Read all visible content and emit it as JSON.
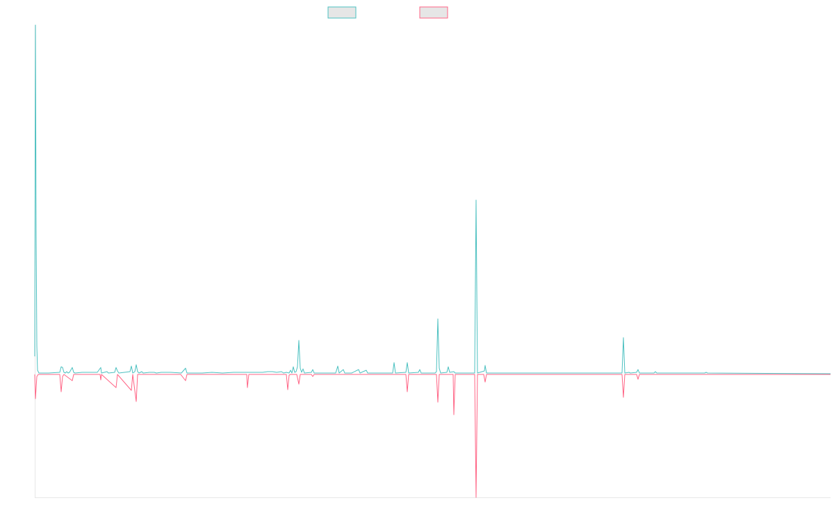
{
  "chart_data": {
    "type": "line",
    "title": "",
    "xlabel": "",
    "ylabel": "",
    "grid": false,
    "legend_position": "top-center",
    "xlim": [
      0,
      1145
    ],
    "ylim": [
      -178,
      502
    ],
    "baseline": 0,
    "series": [
      {
        "legend_label": "",
        "color": "#4bc0c0",
        "legend_fill": "#e6e6e6",
        "points": [
          [
            0,
            25
          ],
          [
            1,
            502
          ],
          [
            2,
            200
          ],
          [
            3,
            40
          ],
          [
            4,
            5
          ],
          [
            6,
            1
          ],
          [
            20,
            1
          ],
          [
            36,
            2
          ],
          [
            38,
            10
          ],
          [
            40,
            9
          ],
          [
            42,
            2
          ],
          [
            44,
            1
          ],
          [
            46,
            3
          ],
          [
            48,
            1
          ],
          [
            50,
            2
          ],
          [
            54,
            9
          ],
          [
            56,
            2
          ],
          [
            58,
            1
          ],
          [
            68,
            2
          ],
          [
            90,
            2
          ],
          [
            95,
            9
          ],
          [
            96,
            1
          ],
          [
            104,
            3
          ],
          [
            106,
            1
          ],
          [
            115,
            2
          ],
          [
            117,
            9
          ],
          [
            119,
            4
          ],
          [
            121,
            1
          ],
          [
            137,
            3
          ],
          [
            139,
            11
          ],
          [
            141,
            1
          ],
          [
            144,
            3
          ],
          [
            146,
            13
          ],
          [
            148,
            3
          ],
          [
            150,
            1
          ],
          [
            154,
            3
          ],
          [
            156,
            1
          ],
          [
            165,
            2
          ],
          [
            172,
            2
          ],
          [
            175,
            1
          ],
          [
            182,
            2
          ],
          [
            189,
            2
          ],
          [
            196,
            2
          ],
          [
            211,
            1
          ],
          [
            217,
            8
          ],
          [
            219,
            1
          ],
          [
            231,
            1
          ],
          [
            241,
            1
          ],
          [
            255,
            2
          ],
          [
            270,
            1
          ],
          [
            286,
            2
          ],
          [
            302,
            2
          ],
          [
            318,
            2
          ],
          [
            328,
            2
          ],
          [
            335,
            3
          ],
          [
            342,
            3
          ],
          [
            348,
            2
          ],
          [
            355,
            3
          ],
          [
            358,
            1
          ],
          [
            362,
            2
          ],
          [
            366,
            1
          ],
          [
            368,
            5
          ],
          [
            370,
            1
          ],
          [
            372,
            10
          ],
          [
            374,
            2
          ],
          [
            376,
            3
          ],
          [
            378,
            10
          ],
          [
            380,
            48
          ],
          [
            382,
            8
          ],
          [
            384,
            2
          ],
          [
            386,
            7
          ],
          [
            388,
            1
          ],
          [
            398,
            2
          ],
          [
            400,
            6
          ],
          [
            402,
            1
          ],
          [
            420,
            1
          ],
          [
            433,
            1
          ],
          [
            436,
            11
          ],
          [
            438,
            1
          ],
          [
            444,
            6
          ],
          [
            446,
            1
          ],
          [
            456,
            1
          ],
          [
            466,
            6
          ],
          [
            468,
            1
          ],
          [
            477,
            5
          ],
          [
            479,
            1
          ],
          [
            500,
            1
          ],
          [
            515,
            1
          ],
          [
            517,
            16
          ],
          [
            519,
            1
          ],
          [
            534,
            2
          ],
          [
            536,
            16
          ],
          [
            538,
            1
          ],
          [
            552,
            2
          ],
          [
            554,
            6
          ],
          [
            556,
            1
          ],
          [
            576,
            1
          ],
          [
            578,
            3
          ],
          [
            580,
            79
          ],
          [
            582,
            8
          ],
          [
            584,
            1
          ],
          [
            593,
            2
          ],
          [
            595,
            10
          ],
          [
            597,
            2
          ],
          [
            603,
            3
          ],
          [
            605,
            1
          ],
          [
            625,
            1
          ],
          [
            633,
            1
          ],
          [
            635,
            250
          ],
          [
            637,
            1
          ],
          [
            647,
            4
          ],
          [
            648,
            12
          ],
          [
            650,
            1
          ],
          [
            680,
            1
          ],
          [
            775,
            1
          ],
          [
            790,
            1
          ],
          [
            831,
            1
          ],
          [
            845,
            1
          ],
          [
            847,
            52
          ],
          [
            849,
            1
          ],
          [
            855,
            2
          ],
          [
            857,
            1
          ],
          [
            866,
            2
          ],
          [
            868,
            6
          ],
          [
            870,
            1
          ],
          [
            891,
            1
          ],
          [
            893,
            3
          ],
          [
            895,
            1
          ],
          [
            964,
            1
          ],
          [
            966,
            2
          ],
          [
            968,
            1
          ],
          [
            1145,
            0
          ]
        ]
      },
      {
        "legend_label": "",
        "color": "#ff6384",
        "legend_fill": "#e6e6e6",
        "points": [
          [
            0,
            -1
          ],
          [
            1,
            -36
          ],
          [
            3,
            -4
          ],
          [
            5,
            -1
          ],
          [
            36,
            -1
          ],
          [
            38,
            -26
          ],
          [
            40,
            -4
          ],
          [
            42,
            -1
          ],
          [
            54,
            -10
          ],
          [
            56,
            -1
          ],
          [
            94,
            -1
          ],
          [
            95,
            -9
          ],
          [
            96,
            -1
          ],
          [
            117,
            -20
          ],
          [
            119,
            -1
          ],
          [
            139,
            -24
          ],
          [
            141,
            -1
          ],
          [
            146,
            -40
          ],
          [
            148,
            -1
          ],
          [
            154,
            -1
          ],
          [
            210,
            -1
          ],
          [
            217,
            -10
          ],
          [
            219,
            -1
          ],
          [
            305,
            -1
          ],
          [
            306,
            -20
          ],
          [
            308,
            -1
          ],
          [
            362,
            -1
          ],
          [
            364,
            -23
          ],
          [
            366,
            -2
          ],
          [
            368,
            -1
          ],
          [
            377,
            -1
          ],
          [
            380,
            -15
          ],
          [
            382,
            -1
          ],
          [
            398,
            -1
          ],
          [
            400,
            -4
          ],
          [
            402,
            -1
          ],
          [
            534,
            -1
          ],
          [
            536,
            -26
          ],
          [
            538,
            -1
          ],
          [
            578,
            -1
          ],
          [
            580,
            -41
          ],
          [
            582,
            -1
          ],
          [
            602,
            -1
          ],
          [
            603,
            -59
          ],
          [
            605,
            -1
          ],
          [
            633,
            -1
          ],
          [
            635,
            -178
          ],
          [
            637,
            -1
          ],
          [
            646,
            -1
          ],
          [
            648,
            -12
          ],
          [
            650,
            -1
          ],
          [
            845,
            -1
          ],
          [
            847,
            -34
          ],
          [
            849,
            -1
          ],
          [
            866,
            -1
          ],
          [
            868,
            -8
          ],
          [
            870,
            -1
          ],
          [
            1145,
            -1
          ]
        ]
      }
    ]
  }
}
